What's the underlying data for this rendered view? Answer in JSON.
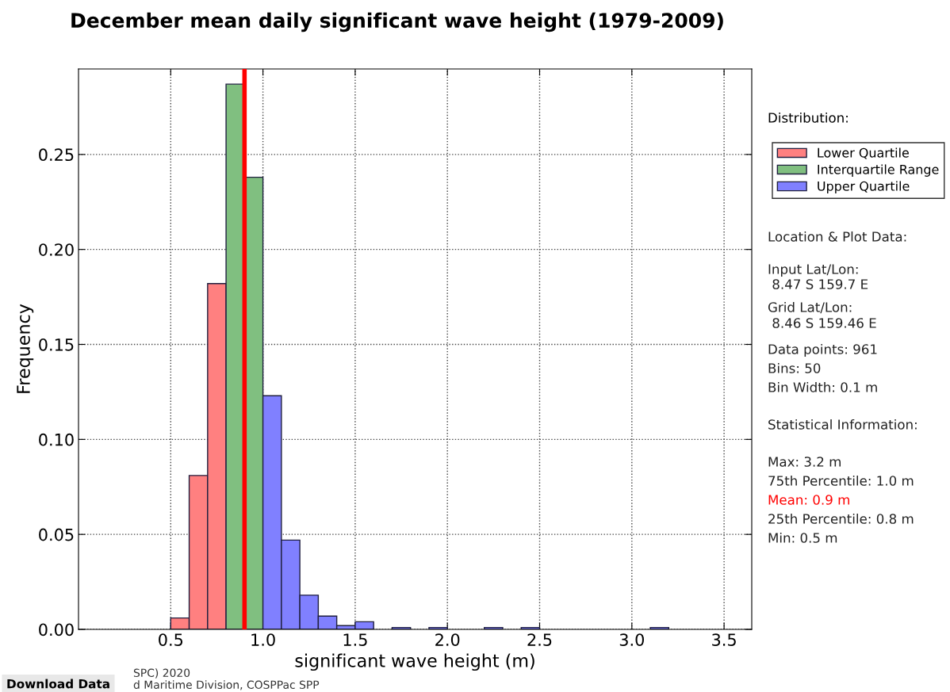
{
  "chart_data": {
    "type": "histogram",
    "title": "December mean daily significant wave height (1979-2009)",
    "xlabel": "significant wave height (m)",
    "ylabel": "Frequency",
    "legend_title": "Distribution:",
    "bins": [
      0.5,
      0.6,
      0.7,
      0.8,
      0.9,
      1.0,
      1.1,
      1.2,
      1.3,
      1.4,
      1.5,
      1.6,
      1.7,
      1.8,
      1.9,
      2.0,
      2.1,
      2.2,
      2.3,
      2.4,
      2.5,
      2.6,
      2.7,
      2.8,
      2.9,
      3.0,
      3.1,
      3.2
    ],
    "series": [
      {
        "name": "Lower Quartile",
        "color": "#ff8080",
        "values": [
          0.006,
          0.081,
          0.182,
          null,
          null,
          null,
          null,
          null,
          null,
          null,
          null,
          null,
          null,
          null,
          null,
          null,
          null,
          null,
          null,
          null,
          null,
          null,
          null,
          null,
          null,
          null,
          null
        ]
      },
      {
        "name": "Interquartile Range",
        "color": "#80bf80",
        "values": [
          null,
          null,
          null,
          0.287,
          0.238,
          null,
          null,
          null,
          null,
          null,
          null,
          null,
          null,
          null,
          null,
          null,
          null,
          null,
          null,
          null,
          null,
          null,
          null,
          null,
          null,
          null,
          null
        ]
      },
      {
        "name": "Upper Quartile",
        "color": "#8080ff",
        "values": [
          null,
          null,
          null,
          null,
          null,
          0.123,
          0.047,
          0.018,
          0.007,
          0.002,
          0.004,
          0,
          0.001,
          0,
          0.001,
          0,
          0,
          0.001,
          0,
          0.001,
          0,
          0,
          0,
          0,
          0,
          0,
          0.001
        ]
      }
    ],
    "xlim": [
      0.0,
      3.65
    ],
    "xticks": [
      {
        "value": 0.5,
        "label": "0.5"
      },
      {
        "value": 1.0,
        "label": "1.0"
      },
      {
        "value": 1.5,
        "label": "1.5"
      },
      {
        "value": 2.0,
        "label": "2.0"
      },
      {
        "value": 2.5,
        "label": "2.5"
      },
      {
        "value": 3.0,
        "label": "3.0"
      },
      {
        "value": 3.5,
        "label": "3.5"
      }
    ],
    "ylim": [
      0,
      0.295
    ],
    "yticks": [
      {
        "value": 0,
        "label": "0.00"
      },
      {
        "value": 0.05,
        "label": "0.05"
      },
      {
        "value": 0.1,
        "label": "0.10"
      },
      {
        "value": 0.15,
        "label": "0.15"
      },
      {
        "value": 0.2,
        "label": "0.20"
      },
      {
        "value": 0.25,
        "label": "0.25"
      }
    ],
    "ref_lines": [
      {
        "axis": "x",
        "value": 0.9,
        "label": "Mean: 0.9 m",
        "color": "#ff0000"
      }
    ],
    "grid": true,
    "legend": "right",
    "annotations": [
      "Location & Plot Data:",
      "Input Lat/Lon:",
      " 8.47 S 159.7 E",
      "Grid Lat/Lon:",
      " 8.46 S 159.46 E",
      "Data points: 961",
      "Bins: 50",
      "Bin Width: 0.1 m",
      "Statistical Information:",
      "Max: 3.2 m",
      "75th Percentile: 1.0 m",
      "25th Percentile: 0.8 m",
      "Min: 0.5 m",
      "SPC) 2020",
      "d Maritime Division, COSPPac SPP",
      "Download Data"
    ]
  }
}
